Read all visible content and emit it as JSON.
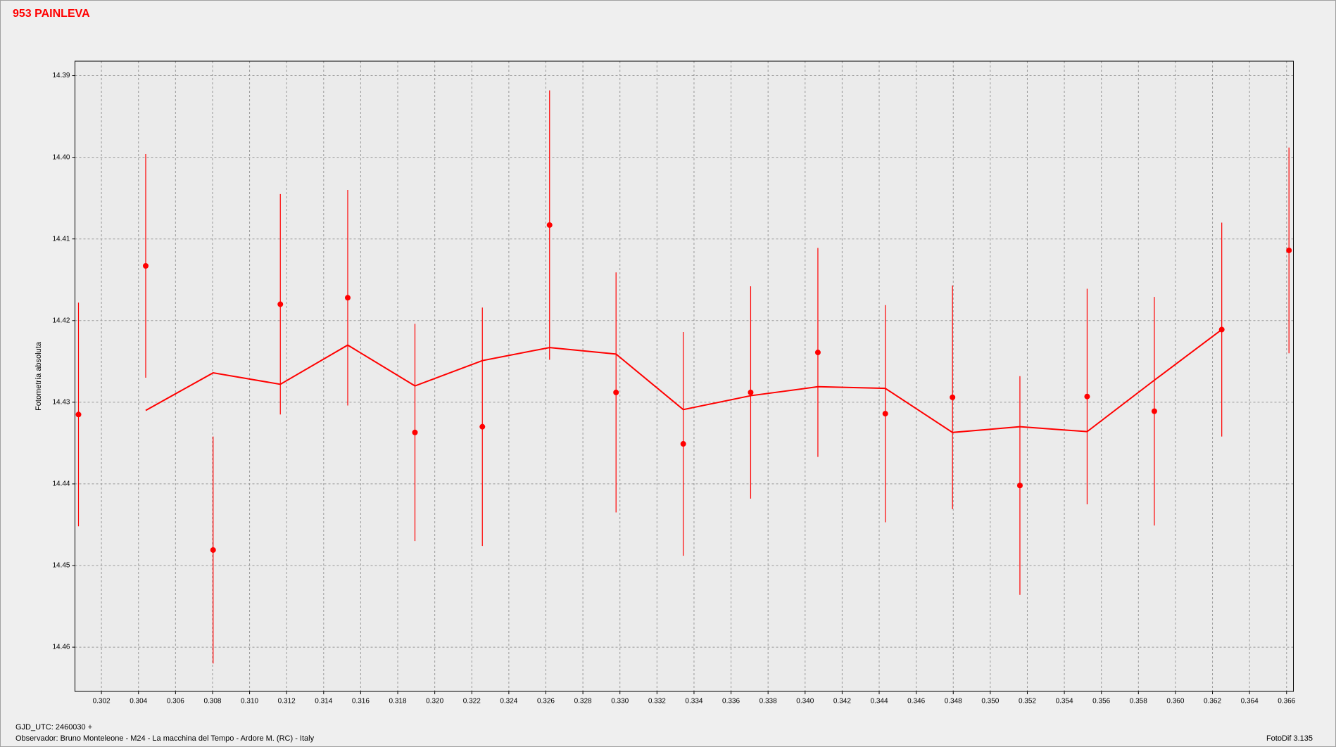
{
  "chart_data": {
    "type": "scatter",
    "title": "953 PAINLEVA",
    "y_label": "Fotometría absoluta",
    "x_label": "GJD_UTC: 2460030 +",
    "footer_left": "Observador: Bruno Monteleone - M24 - La macchina del Tempo - Ardore M. (RC) - Italy",
    "footer_right": "FotoDif 3.135",
    "xlim": [
      0.30057,
      0.36637
    ],
    "ylim": [
      14.38823,
      14.46542
    ],
    "y_inverted": true,
    "grid": true,
    "color": "#ff0000",
    "xticks": [
      0.302,
      0.304,
      0.306,
      0.308,
      {
        "value": 0.31,
        "label": "0.310"
      },
      0.312,
      0.314,
      0.316,
      0.318,
      {
        "value": 0.32,
        "label": "0.320"
      },
      0.322,
      0.324,
      0.326,
      0.328,
      {
        "value": 0.33,
        "label": "0.330"
      },
      0.332,
      0.334,
      0.336,
      0.338,
      {
        "value": 0.34,
        "label": "0.340"
      },
      0.342,
      0.344,
      0.346,
      0.348,
      {
        "value": 0.35,
        "label": "0.350"
      },
      0.352,
      0.354,
      0.356,
      0.358,
      {
        "value": 0.36,
        "label": "0.360"
      },
      0.362,
      0.364,
      0.366
    ],
    "yticks": [
      14.39,
      {
        "value": 14.4,
        "label": "14.40"
      },
      14.41,
      {
        "value": 14.42,
        "label": "14.42"
      },
      14.43,
      14.44,
      14.45,
      14.46
    ],
    "x": [
      0.30076,
      0.30439,
      0.30803,
      0.31166,
      0.3153,
      0.31893,
      0.32257,
      0.3262,
      0.32979,
      0.33342,
      0.33706,
      0.34069,
      0.34433,
      0.34796,
      0.3516,
      0.35523,
      0.35886,
      0.3625,
      0.36613
    ],
    "series": [
      {
        "values": [
          14.4315,
          14.4133,
          14.4481,
          14.418,
          14.4172,
          14.4337,
          14.433,
          14.4083,
          14.4288,
          14.4351,
          14.4288,
          14.4239,
          14.4314,
          14.4294,
          14.4402,
          14.4293,
          14.4311,
          14.4211,
          14.4114
        ],
        "errors": [
          0.0137,
          0.0137,
          0.0139,
          0.0135,
          0.0132,
          0.0133,
          0.0146,
          0.0165,
          0.0147,
          0.0137,
          0.013,
          0.0128,
          0.0133,
          0.0137,
          0.0134,
          0.0132,
          0.014,
          0.0131,
          0.0126
        ]
      },
      {
        "values": [
          null,
          14.431,
          14.4264,
          14.4278,
          14.423,
          14.428,
          14.4249,
          14.4233,
          14.4241,
          14.4309,
          14.4292,
          14.4281,
          14.4283,
          14.4337,
          14.433,
          14.4336,
          14.4273,
          14.4211,
          null
        ]
      }
    ]
  }
}
